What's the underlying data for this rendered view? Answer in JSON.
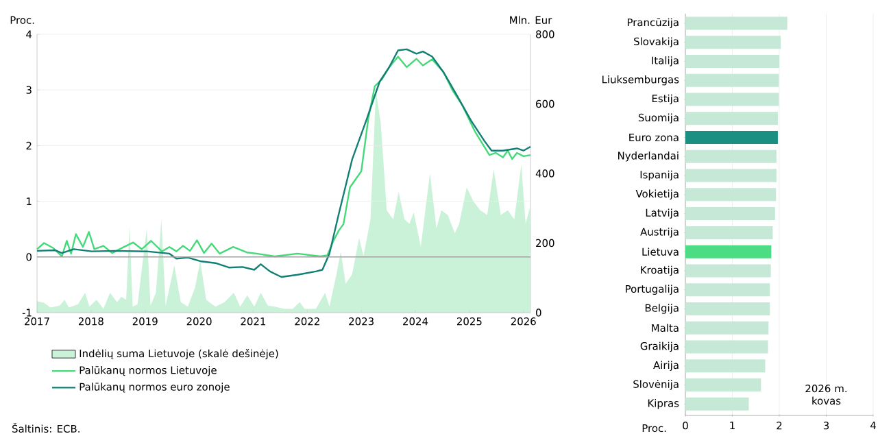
{
  "chart_data": [
    {
      "type": "line",
      "ylabel": "Proc.",
      "y2label": "Mln. Eur",
      "xlim": [
        2017,
        2026.13
      ],
      "xticks": [
        2017,
        2018,
        2019,
        2020,
        2021,
        2022,
        2023,
        2024,
        2025,
        2026
      ],
      "ylim": [
        -1,
        4
      ],
      "yticks": [
        -1,
        0,
        1,
        2,
        3,
        4
      ],
      "y2lim": [
        0,
        800
      ],
      "y2ticks": [
        0,
        200,
        400,
        600,
        800
      ],
      "grid": "y",
      "legend": "bottom",
      "ref_lines": [
        {
          "axis": "y",
          "value": 0,
          "color": "#a0a0a0"
        }
      ],
      "annotations": [
        "Šaltinis: ECB."
      ],
      "series": [
        {
          "name": "Indėlių suma Lietuvoje (skalė dešinėje)",
          "type": "area",
          "axis": "y2",
          "color": "#c9f2d9",
          "x": [
            2017.0,
            2017.13,
            2017.25,
            2017.42,
            2017.51,
            2017.59,
            2017.76,
            2017.89,
            2017.97,
            2018.1,
            2018.23,
            2018.35,
            2018.48,
            2018.56,
            2018.65,
            2018.71,
            2018.77,
            2018.86,
            2019.03,
            2019.1,
            2019.2,
            2019.3,
            2019.38,
            2019.54,
            2019.66,
            2019.79,
            2019.92,
            2020.02,
            2020.13,
            2020.3,
            2020.47,
            2020.64,
            2020.76,
            2020.89,
            2021.02,
            2021.14,
            2021.27,
            2021.4,
            2021.57,
            2021.73,
            2021.86,
            2021.95,
            2022.16,
            2022.33,
            2022.41,
            2022.54,
            2022.62,
            2022.71,
            2022.83,
            2022.96,
            2023.04,
            2023.17,
            2023.27,
            2023.36,
            2023.47,
            2023.59,
            2023.69,
            2023.8,
            2023.89,
            2023.97,
            2024.1,
            2024.27,
            2024.39,
            2024.48,
            2024.6,
            2024.73,
            2024.81,
            2024.95,
            2025.07,
            2025.2,
            2025.33,
            2025.45,
            2025.58,
            2025.71,
            2025.83,
            2025.96,
            2026.04,
            2026.13
          ],
          "values": [
            33,
            28,
            15,
            20,
            37,
            15,
            24,
            57,
            17,
            37,
            11,
            57,
            30,
            46,
            37,
            248,
            17,
            24,
            242,
            20,
            57,
            268,
            20,
            136,
            30,
            17,
            70,
            149,
            37,
            17,
            30,
            57,
            17,
            50,
            17,
            57,
            20,
            17,
            11,
            11,
            30,
            11,
            11,
            57,
            17,
            110,
            176,
            83,
            110,
            215,
            162,
            268,
            638,
            545,
            294,
            268,
            347,
            268,
            255,
            288,
            189,
            400,
            242,
            294,
            281,
            228,
            255,
            360,
            321,
            294,
            281,
            413,
            281,
            294,
            268,
            426,
            255,
            308
          ]
        },
        {
          "name": "Palūkanų normos Lietuvoje",
          "type": "line",
          "color": "#45d97a",
          "x": [
            2017.0,
            2017.13,
            2017.3,
            2017.46,
            2017.55,
            2017.63,
            2017.72,
            2017.85,
            2017.96,
            2018.06,
            2018.23,
            2018.39,
            2018.61,
            2018.78,
            2018.94,
            2019.11,
            2019.31,
            2019.45,
            2019.58,
            2019.7,
            2019.83,
            2019.96,
            2020.09,
            2020.23,
            2020.38,
            2020.63,
            2020.89,
            2021.06,
            2021.4,
            2021.82,
            2022.24,
            2022.37,
            2022.49,
            2022.58,
            2022.67,
            2022.79,
            2023.0,
            2023.13,
            2023.25,
            2023.38,
            2023.51,
            2023.68,
            2023.84,
            2024.02,
            2024.14,
            2024.31,
            2024.52,
            2024.69,
            2024.86,
            2025.11,
            2025.37,
            2025.49,
            2025.62,
            2025.71,
            2025.79,
            2025.88,
            2026.0,
            2026.13
          ],
          "values": [
            0.14,
            0.25,
            0.16,
            0.01,
            0.29,
            0.06,
            0.41,
            0.18,
            0.45,
            0.14,
            0.2,
            0.07,
            0.18,
            0.26,
            0.14,
            0.29,
            0.1,
            0.18,
            0.1,
            0.2,
            0.11,
            0.3,
            0.07,
            0.24,
            0.06,
            0.18,
            0.08,
            0.06,
            0.01,
            0.06,
            0.01,
            0.03,
            0.3,
            0.47,
            0.59,
            1.25,
            1.54,
            2.49,
            3.07,
            3.19,
            3.4,
            3.6,
            3.41,
            3.56,
            3.44,
            3.55,
            3.32,
            2.99,
            2.74,
            2.24,
            1.83,
            1.87,
            1.79,
            1.91,
            1.76,
            1.87,
            1.81,
            1.83
          ]
        },
        {
          "name": "Palūkanų normos euro zonoje",
          "type": "line",
          "color": "#127f74",
          "x": [
            2017.0,
            2017.34,
            2017.46,
            2017.68,
            2018.01,
            2018.44,
            2019.03,
            2019.45,
            2019.58,
            2019.79,
            2020.04,
            2020.3,
            2020.55,
            2020.8,
            2021.02,
            2021.14,
            2021.31,
            2021.52,
            2021.82,
            2022.16,
            2022.28,
            2022.41,
            2022.58,
            2022.83,
            2023.09,
            2023.34,
            2023.51,
            2023.68,
            2023.84,
            2024.02,
            2024.14,
            2024.31,
            2024.52,
            2024.77,
            2025.03,
            2025.28,
            2025.41,
            2025.62,
            2025.88,
            2026.0,
            2026.13
          ],
          "values": [
            0.11,
            0.12,
            0.07,
            0.14,
            0.1,
            0.11,
            0.1,
            0.06,
            -0.03,
            -0.01,
            -0.08,
            -0.11,
            -0.19,
            -0.18,
            -0.23,
            -0.13,
            -0.26,
            -0.36,
            -0.32,
            -0.26,
            -0.23,
            0.06,
            0.76,
            1.75,
            2.45,
            3.15,
            3.4,
            3.71,
            3.73,
            3.65,
            3.69,
            3.6,
            3.32,
            2.9,
            2.45,
            2.08,
            1.91,
            1.91,
            1.95,
            1.91,
            1.98
          ]
        }
      ]
    },
    {
      "type": "bar",
      "orientation": "horizontal",
      "xlabel": "Proc.",
      "xlim": [
        0,
        4
      ],
      "xticks": [
        0,
        1,
        2,
        3,
        4
      ],
      "grid": "x",
      "annotations": [
        "2026 m. kovas"
      ],
      "categories": [
        "Prancūzija",
        "Slovakija",
        "Italija",
        "Liuksemburgas",
        "Estija",
        "Suomija",
        "Euro zona",
        "Nyderlandai",
        "Ispanija",
        "Vokietija",
        "Latvija",
        "Austrija",
        "Lietuva",
        "Kroatija",
        "Portugalija",
        "Belgija",
        "Malta",
        "Graikija",
        "Airija",
        "Slovėnija",
        "Kipras"
      ],
      "values": [
        2.17,
        2.03,
        2.0,
        1.99,
        1.99,
        1.97,
        1.97,
        1.94,
        1.94,
        1.93,
        1.91,
        1.86,
        1.83,
        1.82,
        1.8,
        1.8,
        1.77,
        1.76,
        1.7,
        1.61,
        1.35
      ],
      "colors": [
        "#c5e8d7",
        "#c5e8d7",
        "#c5e8d7",
        "#c5e8d7",
        "#c5e8d7",
        "#c5e8d7",
        "#1a8f82",
        "#c5e8d7",
        "#c5e8d7",
        "#c5e8d7",
        "#c5e8d7",
        "#c5e8d7",
        "#4cdc84",
        "#c5e8d7",
        "#c5e8d7",
        "#c5e8d7",
        "#c5e8d7",
        "#c5e8d7",
        "#c5e8d7",
        "#c5e8d7",
        "#c5e8d7"
      ]
    }
  ]
}
